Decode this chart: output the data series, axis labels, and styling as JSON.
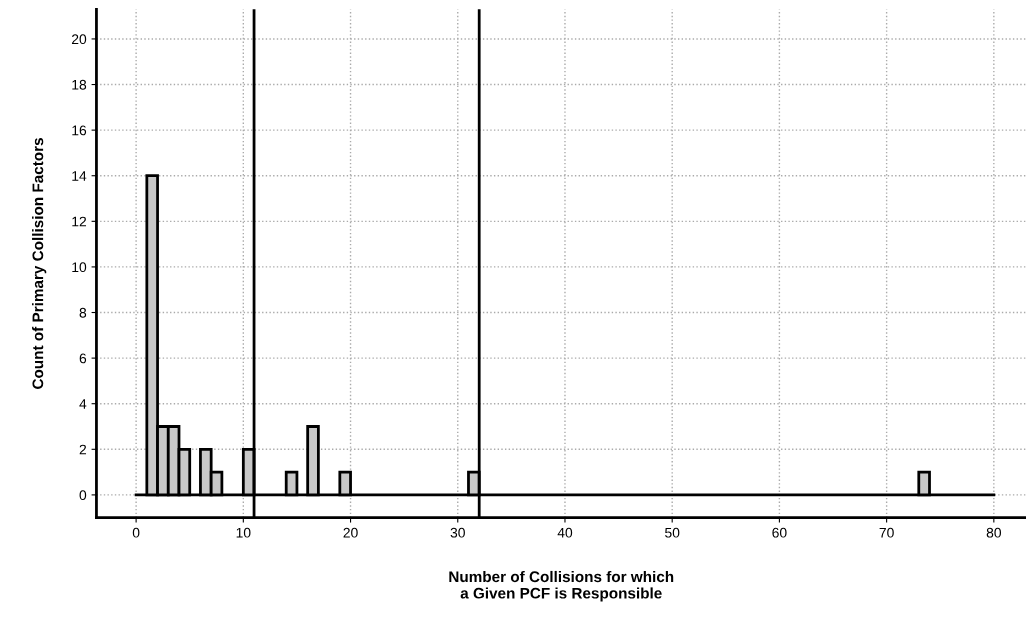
{
  "chart_data": {
    "type": "bar",
    "xlabel": "Number of Collisions for which\na Given PCF is Responsible",
    "ylabel": "Count of Primary Collision Factors",
    "x": [
      1.5,
      2.5,
      3.5,
      4.5,
      6.5,
      7.5,
      10.5,
      14.5,
      16.5,
      19.5,
      31.5,
      73.5
    ],
    "values": [
      14,
      3,
      3,
      2,
      2,
      1,
      2,
      1,
      3,
      1,
      1,
      1
    ],
    "color": "#c8c8c8",
    "xlim": [
      -3.7,
      83
    ],
    "xticks": [
      0,
      10,
      20,
      30,
      40,
      50,
      60,
      70,
      80
    ],
    "ylim": [
      -1,
      21.3
    ],
    "yticks": [
      0,
      2,
      4,
      6,
      8,
      10,
      12,
      14,
      16,
      18,
      20
    ],
    "ref_lines": [
      {
        "axis": "x",
        "value": 11,
        "color": "#000000"
      },
      {
        "axis": "x",
        "value": 32,
        "color": "#000000"
      },
      {
        "axis": "y",
        "value": 0,
        "color": "#000000"
      }
    ],
    "grid": true
  }
}
